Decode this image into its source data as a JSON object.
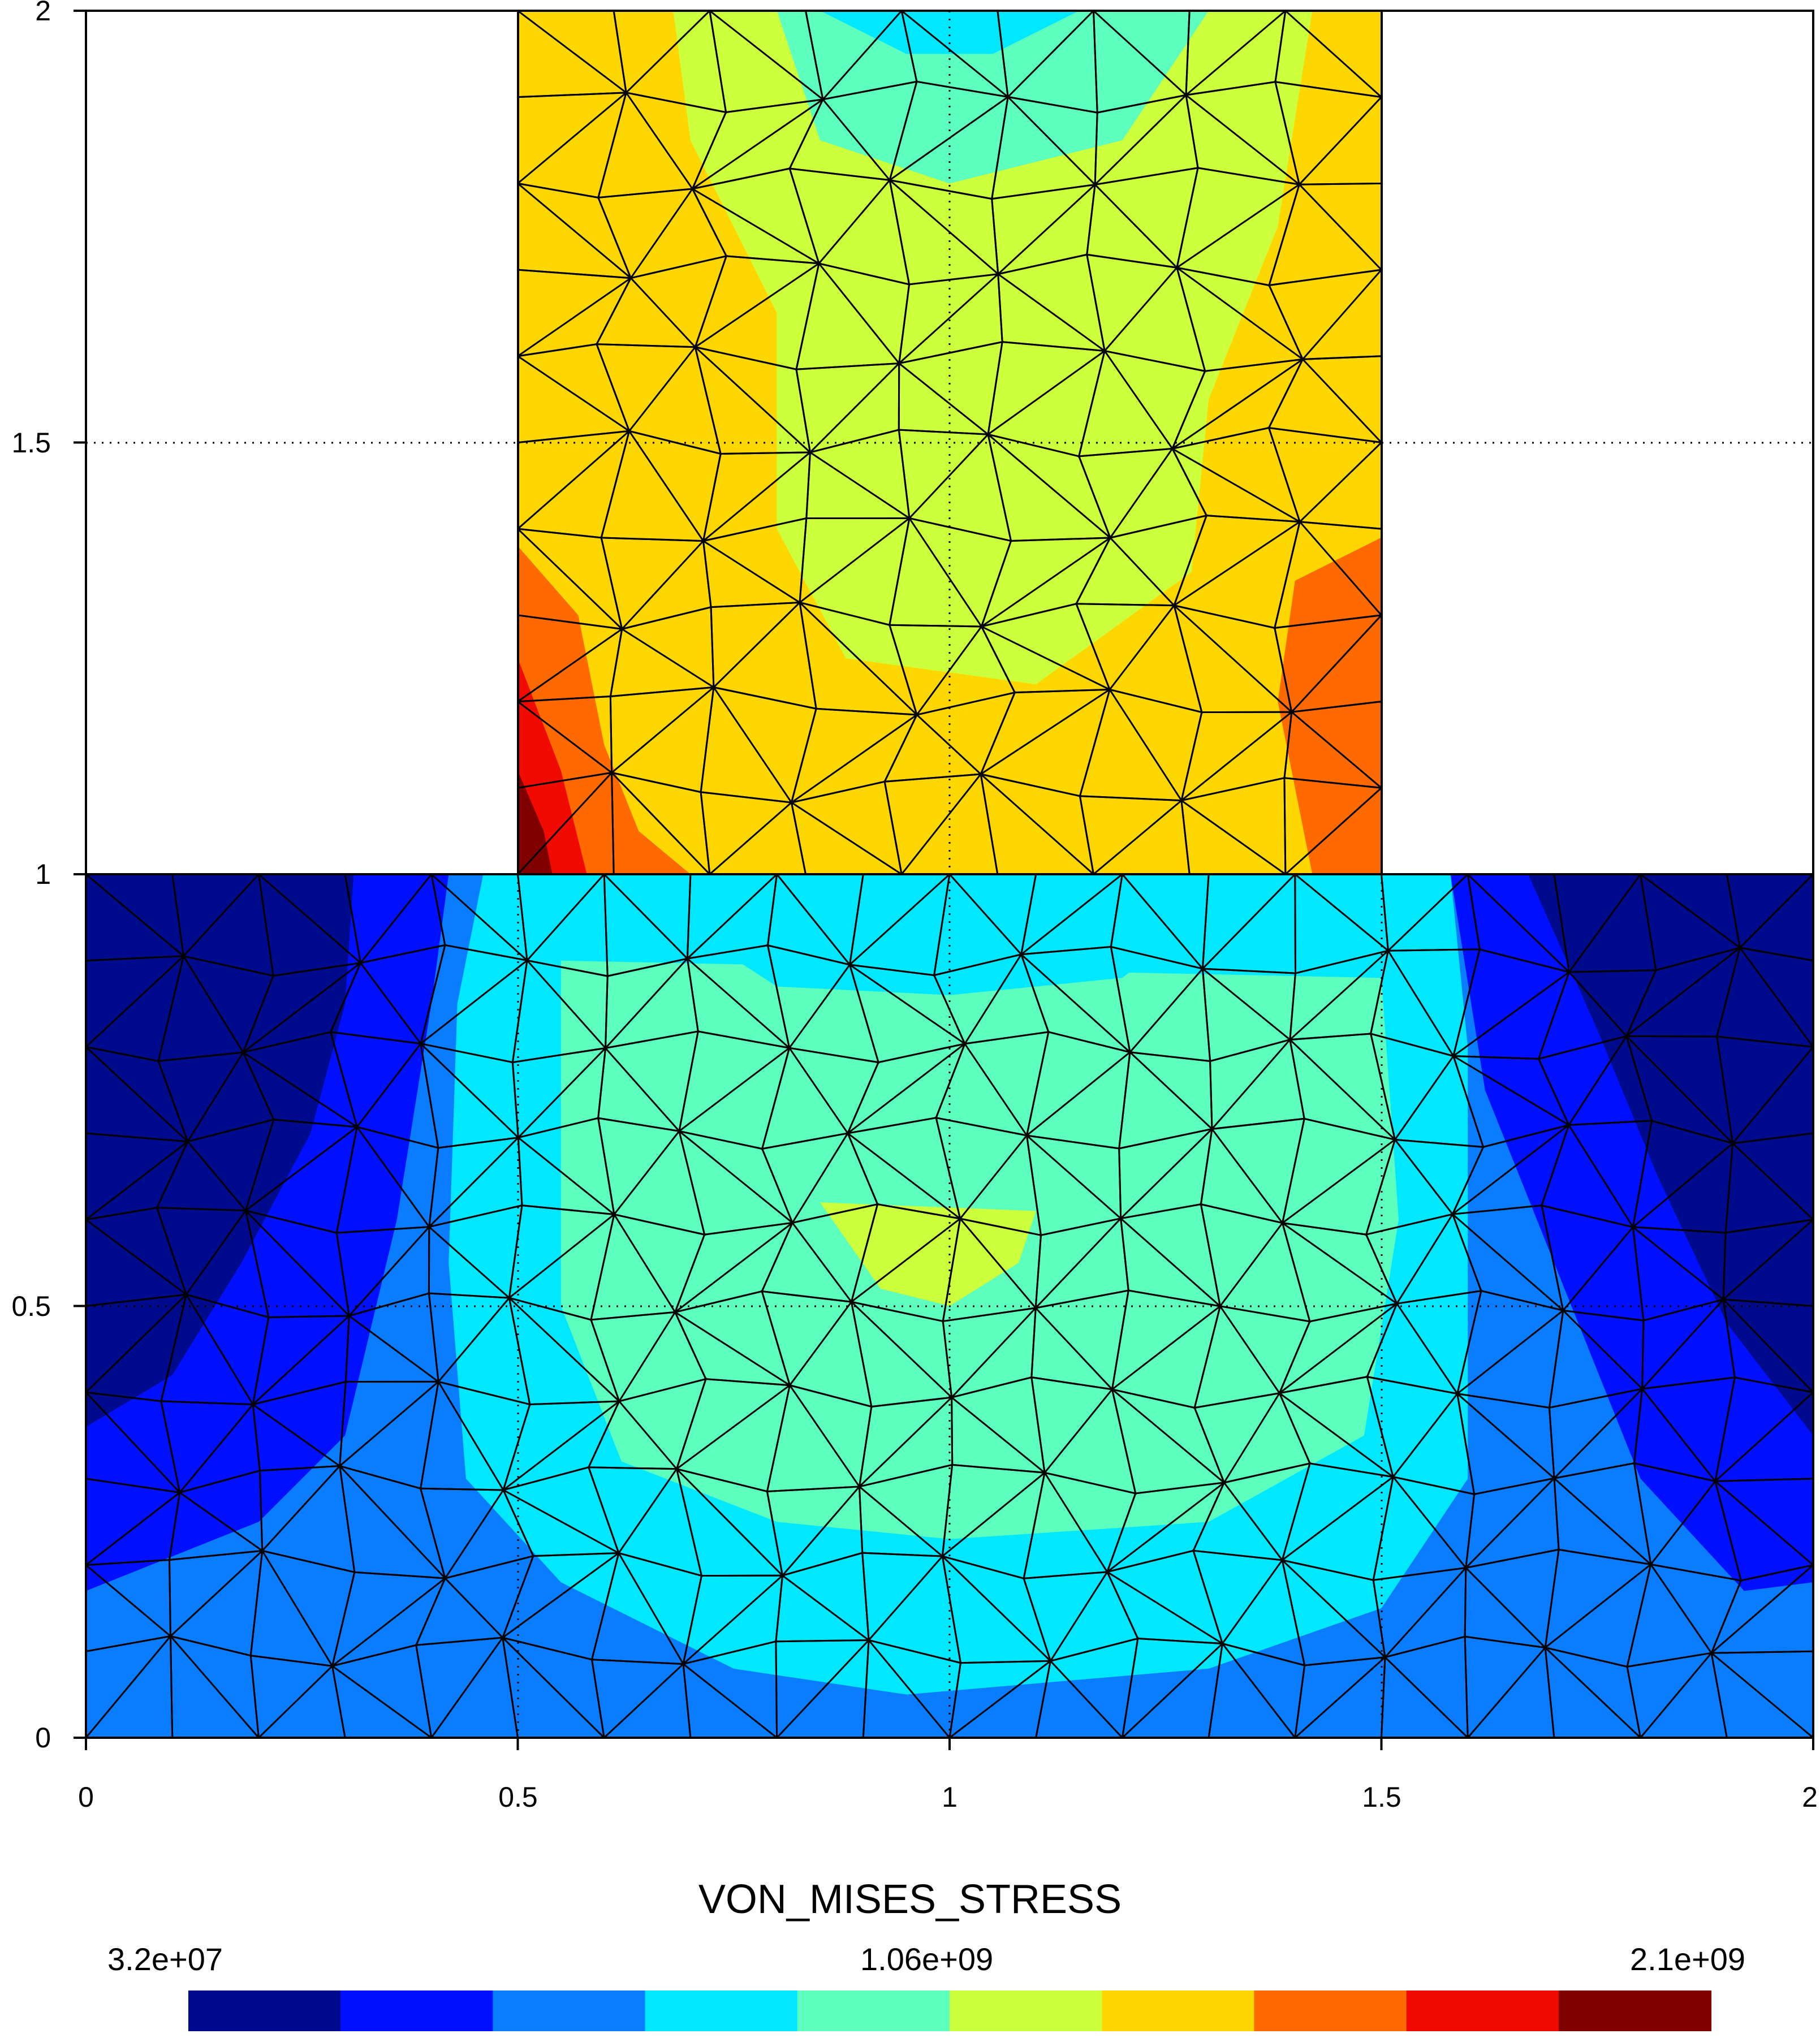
{
  "chart_data": {
    "type": "heatmap",
    "title": "",
    "field_name": "VON_MISES_STRESS",
    "xlim": [
      0,
      2
    ],
    "ylim": [
      0,
      2
    ],
    "x_ticks": [
      "0",
      "0.5",
      "1",
      "1.5",
      "2"
    ],
    "y_ticks": [
      "0",
      "0.5",
      "1",
      "1.5",
      "2"
    ],
    "grid": "dotted lines at 0.5, 1, 1.5",
    "colorbar": {
      "min_label": "3.2e+07",
      "mid_label": "1.06e+09",
      "max_label": "2.1e+09",
      "colors": [
        "#000a8c",
        "#0010ff",
        "#0a7cff",
        "#00e8ff",
        "#5cffbe",
        "#ccff3c",
        "#ffd700",
        "#ff6a00",
        "#f00a00",
        "#800000"
      ]
    },
    "regions": [
      {
        "name": "lower-block",
        "x": [
          0,
          2
        ],
        "y": [
          0,
          1
        ],
        "stress_range": "low to medium"
      },
      {
        "name": "upper-block",
        "x": [
          0.5,
          1.5
        ],
        "y": [
          1,
          2
        ],
        "stress_range": "medium to high"
      }
    ]
  }
}
